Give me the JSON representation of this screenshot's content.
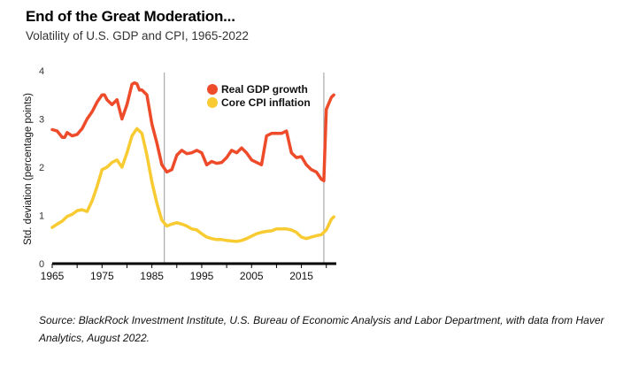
{
  "title": "End of the Great Moderation...",
  "subtitle": "Volatility of U.S. GDP and CPI, 1965-2022",
  "source": "Source: BlackRock Investment Institute, U.S. Bureau of Economic Analysis and Labor Department, with data from Haver Analytics, August 2022.",
  "chart_data": {
    "type": "line",
    "title": "",
    "xlabel": "",
    "ylabel": "Std. deviation (percentage points)",
    "xlim": [
      1965,
      2022
    ],
    "ylim": [
      0,
      4
    ],
    "xticks": [
      1965,
      1975,
      1985,
      1995,
      2005,
      2015
    ],
    "yticks": [
      0,
      1,
      2,
      3,
      4
    ],
    "vlines": [
      1987.5,
      2019.5
    ],
    "legend_position": "top-right",
    "series": [
      {
        "name": "Real GDP growth",
        "color": "#EE4B2B",
        "x": [
          1965,
          1966,
          1967,
          1967.5,
          1968,
          1969,
          1970,
          1971,
          1972,
          1973,
          1974,
          1975,
          1975.5,
          1976,
          1977,
          1978,
          1979,
          1980,
          1981,
          1981.5,
          1982,
          1982.5,
          1983,
          1984,
          1985,
          1986,
          1987,
          1988,
          1989,
          1990,
          1991,
          1992,
          1993,
          1994,
          1995,
          1996,
          1997,
          1998,
          1999,
          2000,
          2001,
          2002,
          2003,
          2004,
          2005,
          2006,
          2007,
          2008,
          2009,
          2010,
          2011,
          2012,
          2013,
          2014,
          2015,
          2016,
          2017,
          2018,
          2019,
          2019.5,
          2020,
          2021,
          2021.5
        ],
        "y": [
          2.78,
          2.75,
          2.62,
          2.62,
          2.72,
          2.65,
          2.68,
          2.8,
          3.0,
          3.15,
          3.35,
          3.5,
          3.5,
          3.4,
          3.3,
          3.4,
          3.0,
          3.3,
          3.72,
          3.75,
          3.73,
          3.6,
          3.6,
          3.5,
          2.9,
          2.5,
          2.05,
          1.9,
          1.95,
          2.25,
          2.35,
          2.28,
          2.3,
          2.35,
          2.3,
          2.05,
          2.12,
          2.08,
          2.1,
          2.2,
          2.35,
          2.3,
          2.4,
          2.3,
          2.15,
          2.1,
          2.05,
          2.65,
          2.7,
          2.7,
          2.7,
          2.75,
          2.3,
          2.2,
          2.22,
          2.05,
          1.95,
          1.9,
          1.75,
          1.72,
          3.2,
          3.45,
          3.5
        ]
      },
      {
        "name": "Core CPI inflation",
        "color": "#F9CB32",
        "x": [
          1965,
          1966,
          1967,
          1968,
          1969,
          1970,
          1971,
          1972,
          1973,
          1974,
          1975,
          1976,
          1977,
          1978,
          1979,
          1980,
          1981,
          1982,
          1983,
          1984,
          1985,
          1986,
          1987,
          1988,
          1989,
          1990,
          1991,
          1992,
          1993,
          1994,
          1995,
          1996,
          1997,
          1998,
          1999,
          2000,
          2001,
          2002,
          2003,
          2004,
          2005,
          2006,
          2007,
          2008,
          2009,
          2010,
          2011,
          2012,
          2013,
          2014,
          2015,
          2016,
          2017,
          2018,
          2019,
          2020,
          2021,
          2021.5
        ],
        "y": [
          0.75,
          0.82,
          0.88,
          0.98,
          1.02,
          1.1,
          1.12,
          1.08,
          1.3,
          1.6,
          1.95,
          2.0,
          2.1,
          2.15,
          2.0,
          2.3,
          2.65,
          2.8,
          2.7,
          2.25,
          1.7,
          1.25,
          0.9,
          0.78,
          0.82,
          0.85,
          0.82,
          0.78,
          0.72,
          0.7,
          0.62,
          0.55,
          0.52,
          0.5,
          0.5,
          0.48,
          0.47,
          0.46,
          0.48,
          0.52,
          0.57,
          0.62,
          0.65,
          0.67,
          0.68,
          0.72,
          0.72,
          0.72,
          0.7,
          0.65,
          0.55,
          0.52,
          0.55,
          0.58,
          0.6,
          0.7,
          0.92,
          0.97
        ]
      }
    ]
  }
}
